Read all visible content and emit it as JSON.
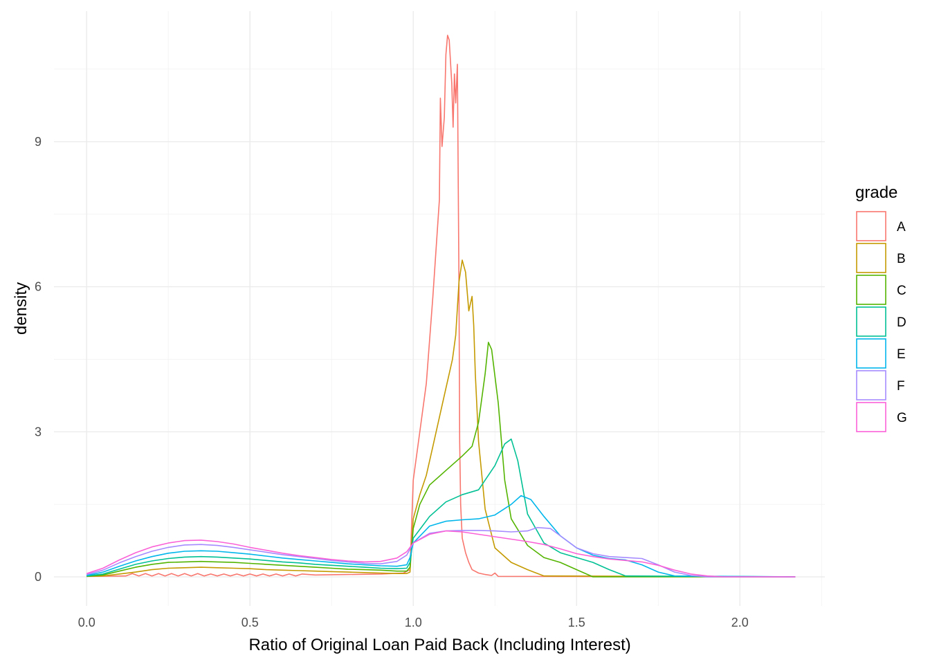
{
  "chart_data": {
    "type": "line",
    "title": "",
    "xlabel": "Ratio of Original Loan Paid Back (Including Interest)",
    "ylabel": "density",
    "xlim": [
      -0.1,
      2.26
    ],
    "ylim": [
      -0.6,
      11.7
    ],
    "x_ticks": [
      0.0,
      0.5,
      1.0,
      1.5,
      2.0
    ],
    "x_tick_labels": [
      "0.0",
      "0.5",
      "1.0",
      "1.5",
      "2.0"
    ],
    "y_ticks": [
      0,
      3,
      6,
      9
    ],
    "y_tick_labels": [
      "0",
      "3",
      "6",
      "9"
    ],
    "grid": true,
    "legend": {
      "title": "grade",
      "position": "right"
    },
    "series": [
      {
        "name": "A",
        "color": "#F8766D",
        "points": [
          [
            0,
            0.01
          ],
          [
            0.12,
            0.02
          ],
          [
            0.14,
            0.07
          ],
          [
            0.16,
            0.02
          ],
          [
            0.18,
            0.07
          ],
          [
            0.2,
            0.02
          ],
          [
            0.22,
            0.07
          ],
          [
            0.24,
            0.02
          ],
          [
            0.26,
            0.07
          ],
          [
            0.28,
            0.02
          ],
          [
            0.3,
            0.07
          ],
          [
            0.32,
            0.02
          ],
          [
            0.34,
            0.07
          ],
          [
            0.36,
            0.02
          ],
          [
            0.38,
            0.06
          ],
          [
            0.4,
            0.02
          ],
          [
            0.42,
            0.06
          ],
          [
            0.44,
            0.02
          ],
          [
            0.46,
            0.06
          ],
          [
            0.48,
            0.02
          ],
          [
            0.5,
            0.06
          ],
          [
            0.52,
            0.02
          ],
          [
            0.54,
            0.06
          ],
          [
            0.56,
            0.02
          ],
          [
            0.58,
            0.06
          ],
          [
            0.6,
            0.02
          ],
          [
            0.62,
            0.06
          ],
          [
            0.64,
            0.02
          ],
          [
            0.66,
            0.06
          ],
          [
            0.7,
            0.04
          ],
          [
            0.8,
            0.05
          ],
          [
            0.9,
            0.06
          ],
          [
            0.97,
            0.08
          ],
          [
            0.99,
            0.15
          ],
          [
            1.0,
            2.0
          ],
          [
            1.02,
            3.0
          ],
          [
            1.04,
            4.0
          ],
          [
            1.06,
            5.8
          ],
          [
            1.08,
            7.8
          ],
          [
            1.083,
            9.9
          ],
          [
            1.088,
            8.9
          ],
          [
            1.095,
            9.5
          ],
          [
            1.1,
            10.8
          ],
          [
            1.105,
            11.2
          ],
          [
            1.11,
            11.1
          ],
          [
            1.118,
            10.2
          ],
          [
            1.122,
            9.3
          ],
          [
            1.126,
            10.4
          ],
          [
            1.13,
            9.8
          ],
          [
            1.135,
            10.6
          ],
          [
            1.14,
            6.0
          ],
          [
            1.142,
            2.8
          ],
          [
            1.145,
            1.5
          ],
          [
            1.15,
            0.8
          ],
          [
            1.16,
            0.5
          ],
          [
            1.17,
            0.3
          ],
          [
            1.18,
            0.15
          ],
          [
            1.2,
            0.08
          ],
          [
            1.22,
            0.05
          ],
          [
            1.24,
            0.03
          ],
          [
            1.25,
            0.08
          ],
          [
            1.26,
            0.01
          ],
          [
            2.17,
            0.0
          ]
        ]
      },
      {
        "name": "B",
        "color": "#C49A00",
        "points": [
          [
            0,
            0.01
          ],
          [
            0.05,
            0.02
          ],
          [
            0.1,
            0.06
          ],
          [
            0.15,
            0.1
          ],
          [
            0.2,
            0.15
          ],
          [
            0.25,
            0.18
          ],
          [
            0.3,
            0.19
          ],
          [
            0.35,
            0.2
          ],
          [
            0.4,
            0.19
          ],
          [
            0.45,
            0.18
          ],
          [
            0.5,
            0.17
          ],
          [
            0.55,
            0.15
          ],
          [
            0.6,
            0.14
          ],
          [
            0.65,
            0.13
          ],
          [
            0.7,
            0.12
          ],
          [
            0.75,
            0.11
          ],
          [
            0.8,
            0.1
          ],
          [
            0.85,
            0.09
          ],
          [
            0.9,
            0.08
          ],
          [
            0.95,
            0.07
          ],
          [
            0.98,
            0.07
          ],
          [
            0.99,
            0.1
          ],
          [
            1.0,
            1.2
          ],
          [
            1.02,
            1.7
          ],
          [
            1.04,
            2.1
          ],
          [
            1.06,
            2.7
          ],
          [
            1.08,
            3.3
          ],
          [
            1.1,
            3.9
          ],
          [
            1.12,
            4.5
          ],
          [
            1.13,
            5.0
          ],
          [
            1.14,
            6.1
          ],
          [
            1.15,
            6.55
          ],
          [
            1.16,
            6.3
          ],
          [
            1.17,
            5.5
          ],
          [
            1.18,
            5.8
          ],
          [
            1.185,
            5.2
          ],
          [
            1.19,
            4.2
          ],
          [
            1.2,
            2.8
          ],
          [
            1.22,
            1.4
          ],
          [
            1.25,
            0.6
          ],
          [
            1.3,
            0.3
          ],
          [
            1.35,
            0.15
          ],
          [
            1.4,
            0.02
          ],
          [
            2.17,
            0.0
          ]
        ]
      },
      {
        "name": "C",
        "color": "#53B400",
        "points": [
          [
            0,
            0.01
          ],
          [
            0.05,
            0.04
          ],
          [
            0.1,
            0.12
          ],
          [
            0.15,
            0.2
          ],
          [
            0.2,
            0.26
          ],
          [
            0.25,
            0.3
          ],
          [
            0.3,
            0.31
          ],
          [
            0.35,
            0.32
          ],
          [
            0.4,
            0.31
          ],
          [
            0.45,
            0.3
          ],
          [
            0.5,
            0.28
          ],
          [
            0.55,
            0.26
          ],
          [
            0.6,
            0.24
          ],
          [
            0.65,
            0.22
          ],
          [
            0.7,
            0.2
          ],
          [
            0.75,
            0.18
          ],
          [
            0.8,
            0.16
          ],
          [
            0.85,
            0.15
          ],
          [
            0.9,
            0.14
          ],
          [
            0.95,
            0.12
          ],
          [
            0.98,
            0.12
          ],
          [
            0.99,
            0.2
          ],
          [
            1.0,
            1.0
          ],
          [
            1.02,
            1.5
          ],
          [
            1.05,
            1.9
          ],
          [
            1.1,
            2.2
          ],
          [
            1.15,
            2.5
          ],
          [
            1.18,
            2.7
          ],
          [
            1.2,
            3.2
          ],
          [
            1.22,
            4.2
          ],
          [
            1.23,
            4.85
          ],
          [
            1.24,
            4.7
          ],
          [
            1.26,
            3.6
          ],
          [
            1.28,
            2.0
          ],
          [
            1.3,
            1.2
          ],
          [
            1.35,
            0.65
          ],
          [
            1.4,
            0.4
          ],
          [
            1.45,
            0.3
          ],
          [
            1.5,
            0.15
          ],
          [
            1.55,
            0.0
          ],
          [
            2.17,
            0.0
          ]
        ]
      },
      {
        "name": "D",
        "color": "#00C094",
        "points": [
          [
            0,
            0.02
          ],
          [
            0.05,
            0.06
          ],
          [
            0.1,
            0.16
          ],
          [
            0.15,
            0.26
          ],
          [
            0.2,
            0.33
          ],
          [
            0.25,
            0.38
          ],
          [
            0.3,
            0.41
          ],
          [
            0.35,
            0.42
          ],
          [
            0.4,
            0.41
          ],
          [
            0.45,
            0.39
          ],
          [
            0.5,
            0.37
          ],
          [
            0.55,
            0.34
          ],
          [
            0.6,
            0.31
          ],
          [
            0.65,
            0.29
          ],
          [
            0.7,
            0.26
          ],
          [
            0.75,
            0.24
          ],
          [
            0.8,
            0.22
          ],
          [
            0.85,
            0.2
          ],
          [
            0.9,
            0.18
          ],
          [
            0.95,
            0.17
          ],
          [
            0.98,
            0.18
          ],
          [
            0.99,
            0.3
          ],
          [
            1.0,
            0.8
          ],
          [
            1.05,
            1.25
          ],
          [
            1.1,
            1.55
          ],
          [
            1.15,
            1.7
          ],
          [
            1.2,
            1.8
          ],
          [
            1.25,
            2.3
          ],
          [
            1.28,
            2.75
          ],
          [
            1.3,
            2.85
          ],
          [
            1.32,
            2.4
          ],
          [
            1.35,
            1.3
          ],
          [
            1.4,
            0.7
          ],
          [
            1.45,
            0.5
          ],
          [
            1.5,
            0.4
          ],
          [
            1.55,
            0.3
          ],
          [
            1.6,
            0.15
          ],
          [
            1.65,
            0.02
          ],
          [
            2.17,
            0.0
          ]
        ]
      },
      {
        "name": "E",
        "color": "#00B6EB",
        "points": [
          [
            0,
            0.03
          ],
          [
            0.05,
            0.1
          ],
          [
            0.1,
            0.22
          ],
          [
            0.15,
            0.33
          ],
          [
            0.2,
            0.42
          ],
          [
            0.25,
            0.49
          ],
          [
            0.3,
            0.53
          ],
          [
            0.35,
            0.54
          ],
          [
            0.4,
            0.53
          ],
          [
            0.45,
            0.5
          ],
          [
            0.5,
            0.47
          ],
          [
            0.55,
            0.43
          ],
          [
            0.6,
            0.39
          ],
          [
            0.65,
            0.36
          ],
          [
            0.7,
            0.33
          ],
          [
            0.75,
            0.3
          ],
          [
            0.8,
            0.27
          ],
          [
            0.85,
            0.25
          ],
          [
            0.9,
            0.23
          ],
          [
            0.95,
            0.22
          ],
          [
            0.98,
            0.25
          ],
          [
            0.99,
            0.4
          ],
          [
            1.0,
            0.7
          ],
          [
            1.05,
            1.05
          ],
          [
            1.1,
            1.15
          ],
          [
            1.15,
            1.18
          ],
          [
            1.2,
            1.2
          ],
          [
            1.25,
            1.28
          ],
          [
            1.3,
            1.5
          ],
          [
            1.33,
            1.68
          ],
          [
            1.36,
            1.6
          ],
          [
            1.4,
            1.25
          ],
          [
            1.45,
            0.85
          ],
          [
            1.5,
            0.6
          ],
          [
            1.55,
            0.45
          ],
          [
            1.6,
            0.38
          ],
          [
            1.65,
            0.35
          ],
          [
            1.7,
            0.25
          ],
          [
            1.75,
            0.1
          ],
          [
            1.8,
            0.02
          ],
          [
            2.17,
            0.0
          ]
        ]
      },
      {
        "name": "F",
        "color": "#A58AFF",
        "points": [
          [
            0,
            0.05
          ],
          [
            0.05,
            0.14
          ],
          [
            0.1,
            0.29
          ],
          [
            0.15,
            0.42
          ],
          [
            0.2,
            0.53
          ],
          [
            0.25,
            0.61
          ],
          [
            0.3,
            0.66
          ],
          [
            0.35,
            0.67
          ],
          [
            0.4,
            0.65
          ],
          [
            0.45,
            0.61
          ],
          [
            0.5,
            0.56
          ],
          [
            0.55,
            0.51
          ],
          [
            0.6,
            0.46
          ],
          [
            0.65,
            0.42
          ],
          [
            0.7,
            0.38
          ],
          [
            0.75,
            0.34
          ],
          [
            0.8,
            0.31
          ],
          [
            0.85,
            0.28
          ],
          [
            0.9,
            0.27
          ],
          [
            0.95,
            0.32
          ],
          [
            0.98,
            0.45
          ],
          [
            1.0,
            0.7
          ],
          [
            1.05,
            0.9
          ],
          [
            1.1,
            0.95
          ],
          [
            1.15,
            0.96
          ],
          [
            1.2,
            0.96
          ],
          [
            1.25,
            0.95
          ],
          [
            1.3,
            0.93
          ],
          [
            1.35,
            0.95
          ],
          [
            1.38,
            1.02
          ],
          [
            1.42,
            1.0
          ],
          [
            1.45,
            0.85
          ],
          [
            1.5,
            0.6
          ],
          [
            1.55,
            0.48
          ],
          [
            1.6,
            0.42
          ],
          [
            1.65,
            0.4
          ],
          [
            1.7,
            0.38
          ],
          [
            1.75,
            0.25
          ],
          [
            1.8,
            0.1
          ],
          [
            1.85,
            0.03
          ],
          [
            1.9,
            0.0
          ],
          [
            2.17,
            0.0
          ]
        ]
      },
      {
        "name": "G",
        "color": "#FB61D7",
        "points": [
          [
            0,
            0.07
          ],
          [
            0.05,
            0.18
          ],
          [
            0.1,
            0.35
          ],
          [
            0.15,
            0.5
          ],
          [
            0.2,
            0.62
          ],
          [
            0.25,
            0.7
          ],
          [
            0.3,
            0.75
          ],
          [
            0.35,
            0.76
          ],
          [
            0.4,
            0.73
          ],
          [
            0.45,
            0.68
          ],
          [
            0.5,
            0.61
          ],
          [
            0.55,
            0.55
          ],
          [
            0.6,
            0.49
          ],
          [
            0.65,
            0.44
          ],
          [
            0.7,
            0.4
          ],
          [
            0.75,
            0.36
          ],
          [
            0.8,
            0.33
          ],
          [
            0.85,
            0.31
          ],
          [
            0.9,
            0.32
          ],
          [
            0.95,
            0.39
          ],
          [
            0.98,
            0.52
          ],
          [
            1.0,
            0.7
          ],
          [
            1.05,
            0.88
          ],
          [
            1.1,
            0.95
          ],
          [
            1.15,
            0.93
          ],
          [
            1.2,
            0.88
          ],
          [
            1.25,
            0.83
          ],
          [
            1.3,
            0.78
          ],
          [
            1.35,
            0.73
          ],
          [
            1.4,
            0.67
          ],
          [
            1.45,
            0.58
          ],
          [
            1.5,
            0.48
          ],
          [
            1.55,
            0.42
          ],
          [
            1.6,
            0.37
          ],
          [
            1.65,
            0.34
          ],
          [
            1.7,
            0.31
          ],
          [
            1.75,
            0.24
          ],
          [
            1.8,
            0.14
          ],
          [
            1.85,
            0.06
          ],
          [
            1.9,
            0.02
          ],
          [
            1.95,
            0.0
          ],
          [
            2.17,
            0.0
          ]
        ]
      }
    ]
  }
}
